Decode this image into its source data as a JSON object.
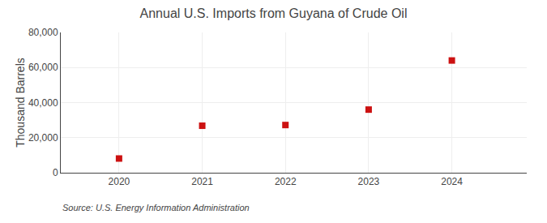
{
  "chart_data": {
    "type": "scatter",
    "title": "Annual U.S. Imports from Guyana of Crude Oil",
    "ylabel": "Thousand Barrels",
    "x": [
      2020,
      2021,
      2022,
      2023,
      2024
    ],
    "values": [
      8100,
      26800,
      27200,
      36000,
      64000
    ],
    "color": "#cc1111",
    "marker": "square",
    "xlim": [
      2019.3,
      2024.9
    ],
    "xticks": [
      2020,
      2021,
      2022,
      2023,
      2024
    ],
    "ylim": [
      0,
      80000
    ],
    "yticks": [
      0,
      {
        "value": 20000,
        "label": "20,000"
      },
      {
        "value": 40000,
        "label": "40,000"
      },
      {
        "value": 60000,
        "label": "60,000"
      },
      {
        "value": 80000,
        "label": "80,000"
      }
    ],
    "grid": true,
    "annotations": [
      "Source: U.S. Energy Information Administration"
    ]
  }
}
